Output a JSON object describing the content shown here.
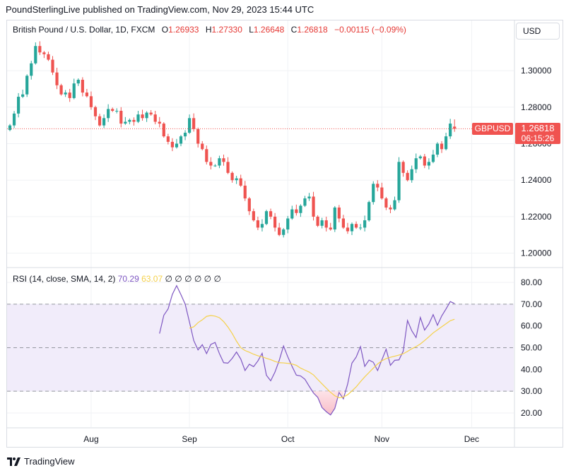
{
  "header": {
    "published": "PoundSterlingLive published on TradingView.com, Nov 29, 2023 15:44 UTC"
  },
  "legend": {
    "symbol": "British Pound / U.S. Dollar, 1D, FXCM",
    "o_label": "O",
    "o_val": "1.26933",
    "h_label": "H",
    "h_val": "1.27330",
    "l_label": "L",
    "l_val": "1.26648",
    "c_label": "C",
    "c_val": "1.26818",
    "change": "−0.00115 (−0.09%)"
  },
  "currency_button": "USD",
  "tags": {
    "symbol": "GBPUSD",
    "price": "1.26818",
    "countdown": "06:15:26"
  },
  "rsi_legend": {
    "label": "RSI (14, close, SMA, 14, 2)",
    "rsi_value": "70.29",
    "sma_value": "63.07",
    "na_values": [
      "∅",
      "∅",
      "∅",
      "∅",
      "∅",
      "∅"
    ]
  },
  "brand": "TradingView",
  "colors": {
    "up": "#26a69a",
    "down": "#ef5350",
    "rsi": "#7e57c2",
    "rsi_sma": "#f5d14a",
    "band_fill": "#f1ecfa"
  },
  "chart_data": {
    "type": "candlestick",
    "title": "British Pound / U.S. Dollar, 1D, FXCM",
    "price_axis": {
      "ticks": [
        "1.30000",
        "1.28000",
        "1.26000",
        "1.24000",
        "1.22000",
        "1.20000"
      ],
      "range": [
        1.1925,
        1.3275
      ]
    },
    "x_ticks": [
      "Aug",
      "Sep",
      "Oct",
      "Nov",
      "Dec"
    ],
    "last_close": 1.26818,
    "closes": [
      1.27,
      1.2765,
      1.2857,
      1.287,
      1.2972,
      1.304,
      1.3135,
      1.31,
      1.309,
      1.306,
      1.299,
      1.292,
      1.287,
      1.288,
      1.285,
      1.293,
      1.295,
      1.288,
      1.286,
      1.28,
      1.275,
      1.27,
      1.274,
      1.279,
      1.278,
      1.278,
      1.271,
      1.272,
      1.273,
      1.272,
      1.276,
      1.274,
      1.277,
      1.276,
      1.272,
      1.271,
      1.264,
      1.261,
      1.258,
      1.26,
      1.264,
      1.266,
      1.274,
      1.268,
      1.26,
      1.257,
      1.25,
      1.248,
      1.248,
      1.252,
      1.25,
      1.244,
      1.24,
      1.241,
      1.237,
      1.23,
      1.223,
      1.218,
      1.214,
      1.216,
      1.223,
      1.22,
      1.214,
      1.21,
      1.213,
      1.219,
      1.224,
      1.222,
      1.226,
      1.23,
      1.231,
      1.22,
      1.215,
      1.218,
      1.214,
      1.213,
      1.225,
      1.219,
      1.214,
      1.212,
      1.216,
      1.214,
      1.214,
      1.218,
      1.228,
      1.238,
      1.236,
      1.23,
      1.225,
      1.224,
      1.229,
      1.25,
      1.244,
      1.24,
      1.246,
      1.252,
      1.253,
      1.248,
      1.25,
      1.254,
      1.26,
      1.257,
      1.264,
      1.271,
      1.26818
    ],
    "ohlc_legend": {
      "open": 1.26933,
      "high": 1.2733,
      "low": 1.26648,
      "close": 1.26818,
      "change": -0.00115,
      "change_pct": -0.09
    },
    "rsi": {
      "ticks": [
        "80.00",
        "70.00",
        "60.00",
        "50.00",
        "40.00",
        "30.00",
        "20.00"
      ],
      "range": [
        13.5,
        86.5
      ],
      "overbought": 70,
      "middle": 50,
      "oversold": 30,
      "rsi_values": [
        56.5,
        64.9,
        67.8,
        74.5,
        78.5,
        74.4,
        70.0,
        61.8,
        53.3,
        49.0,
        51.4,
        47.3,
        51.5,
        52.4,
        47.3,
        43.1,
        42.9,
        45.1,
        48.0,
        44.8,
        39.5,
        42.4,
        41.3,
        43.9,
        47.4,
        37.3,
        34.8,
        38.8,
        44.2,
        50.8,
        45.8,
        41.4,
        37.4,
        37.0,
        35.5,
        32.3,
        29.2,
        27.2,
        22.5,
        20.6,
        19.1,
        22.1,
        29.4,
        26.5,
        33.3,
        42.9,
        45.7,
        50.5,
        41.4,
        44.3,
        43.3,
        39.5,
        44.4,
        49.3,
        41.9,
        44.2,
        44.4,
        48.4,
        62.5,
        57.8,
        54.7,
        63.9,
        58.1,
        60.9,
        65.2,
        60.3,
        64.6,
        67.8,
        71.2,
        70.3
      ],
      "sma_values": [
        59.0,
        59.6,
        61.5,
        62.8,
        64.4,
        64.8,
        64.5,
        63.8,
        62.0,
        59.5,
        56.5,
        53.0,
        50.0,
        48.7,
        47.9,
        47.0,
        46.3,
        45.8,
        45.1,
        44.5,
        43.7,
        43.1,
        43.0,
        42.8,
        42.5,
        41.9,
        40.6,
        39.7,
        38.8,
        37.5,
        35.4,
        33.4,
        31.4,
        29.5,
        27.9,
        27.0,
        27.3,
        28.4,
        30.1,
        32.0,
        34.4,
        36.6,
        38.6,
        40.6,
        42.5,
        44.0,
        45.0,
        45.6,
        46.1,
        46.6,
        47.2,
        48.3,
        49.5,
        50.5,
        51.7,
        53.3,
        55.0,
        56.8,
        58.2,
        59.6,
        61.0,
        62.4,
        63.07
      ]
    }
  }
}
